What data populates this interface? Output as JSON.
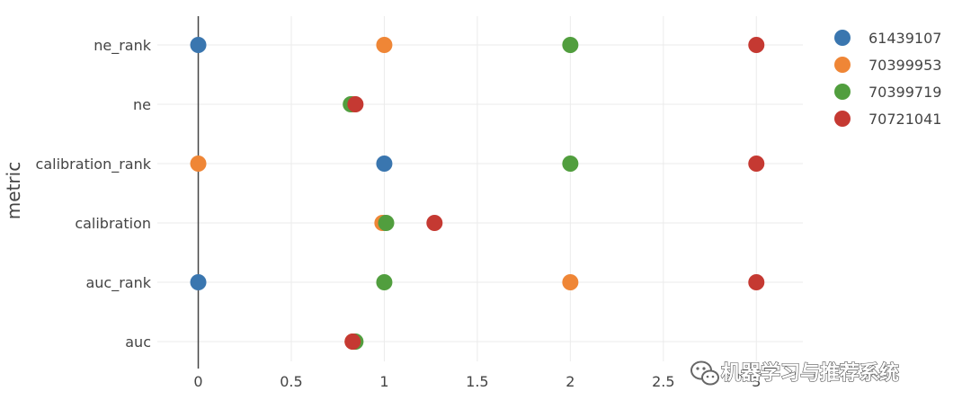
{
  "chart_data": {
    "type": "scatter",
    "xlabel": "",
    "ylabel": "metric",
    "xlim": [
      -0.22,
      3.25
    ],
    "x_ticks": [
      {
        "value": 0,
        "label": "0"
      },
      {
        "value": 0.5,
        "label": "0.5"
      },
      {
        "value": 1,
        "label": "1"
      },
      {
        "value": 1.5,
        "label": "1.5"
      },
      {
        "value": 2,
        "label": "2"
      },
      {
        "value": 2.5,
        "label": "2.5"
      },
      {
        "value": 3,
        "label": "3"
      }
    ],
    "categories": [
      "ne_rank",
      "ne",
      "calibration_rank",
      "calibration",
      "auc_rank",
      "auc"
    ],
    "grid": true,
    "legend_position": "top-right",
    "series": [
      {
        "name": "61439107",
        "color": "#3a76af",
        "points": [
          {
            "category": "ne_rank",
            "x": 0
          },
          {
            "category": "ne",
            "x": 0.84
          },
          {
            "category": "calibration_rank",
            "x": 1
          },
          {
            "category": "calibration",
            "x": 1.0
          },
          {
            "category": "auc_rank",
            "x": 0
          },
          {
            "category": "auc",
            "x": 0.84
          }
        ]
      },
      {
        "name": "70399953",
        "color": "#ef8636",
        "points": [
          {
            "category": "ne_rank",
            "x": 1
          },
          {
            "category": "ne",
            "x": 0.83
          },
          {
            "category": "calibration_rank",
            "x": 0
          },
          {
            "category": "calibration",
            "x": 0.99
          },
          {
            "category": "auc_rank",
            "x": 2
          },
          {
            "category": "auc",
            "x": 0.83
          }
        ]
      },
      {
        "name": "70399719",
        "color": "#519e3e",
        "points": [
          {
            "category": "ne_rank",
            "x": 2
          },
          {
            "category": "ne",
            "x": 0.82
          },
          {
            "category": "calibration_rank",
            "x": 2
          },
          {
            "category": "calibration",
            "x": 1.01
          },
          {
            "category": "auc_rank",
            "x": 1
          },
          {
            "category": "auc",
            "x": 0.845
          }
        ]
      },
      {
        "name": "70721041",
        "color": "#c53932",
        "points": [
          {
            "category": "ne_rank",
            "x": 3
          },
          {
            "category": "ne",
            "x": 0.845
          },
          {
            "category": "calibration_rank",
            "x": 3
          },
          {
            "category": "calibration",
            "x": 1.27
          },
          {
            "category": "auc_rank",
            "x": 3
          },
          {
            "category": "auc",
            "x": 0.83
          }
        ]
      }
    ]
  },
  "watermark": {
    "text": "机器学习与推荐系统",
    "icon": "wechat-icon"
  }
}
